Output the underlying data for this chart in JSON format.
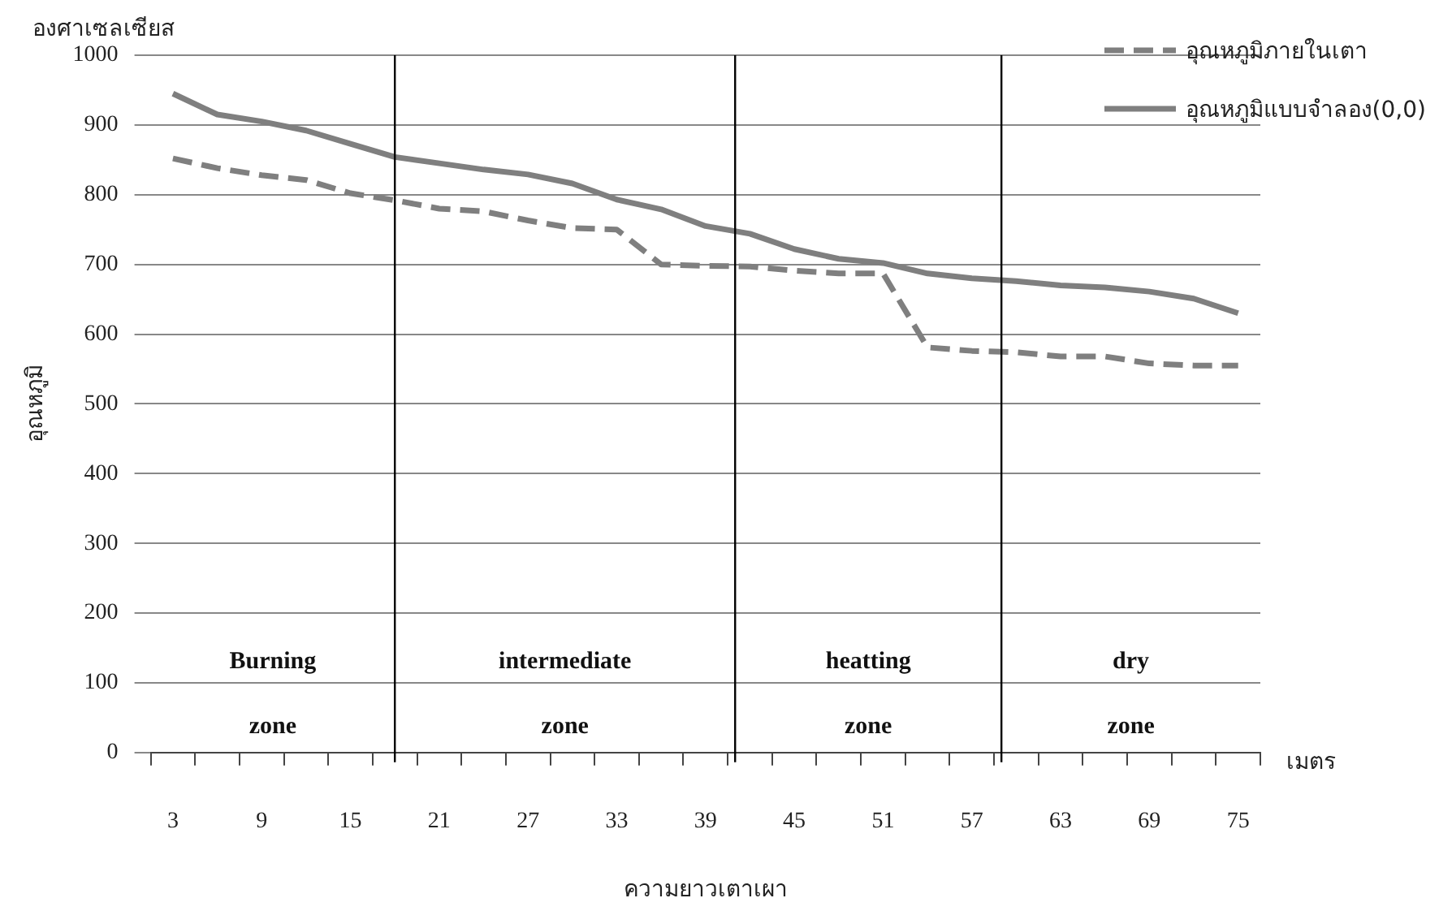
{
  "chart_data": {
    "type": "line",
    "ylabel": "อุณหภูมิ",
    "xlabel": "ความยาวเตาเผา",
    "annotations": [
      "องศาเซลเซียส",
      "เมตร",
      "Burning",
      "zone",
      "intermediate",
      "zone",
      "heatting",
      "zone",
      "dry",
      "zone"
    ],
    "x": [
      3,
      6,
      9,
      12,
      15,
      18,
      21,
      24,
      27,
      30,
      33,
      36,
      39,
      42,
      45,
      48,
      51,
      54,
      57,
      60,
      63,
      66,
      69,
      72,
      75
    ],
    "xlim": [
      1.5,
      76.5
    ],
    "xticks": [
      {
        "value": 1.5,
        "label": null
      },
      3,
      {
        "value": 4.5,
        "label": null
      },
      {
        "value": 7.5,
        "label": null
      },
      9,
      {
        "value": 10.5,
        "label": null
      },
      {
        "value": 13.5,
        "label": null
      },
      15,
      {
        "value": 16.5,
        "label": null
      },
      {
        "value": 19.5,
        "label": null
      },
      21,
      {
        "value": 22.5,
        "label": null
      },
      {
        "value": 25.5,
        "label": null
      },
      27,
      {
        "value": 28.5,
        "label": null
      },
      {
        "value": 31.5,
        "label": null
      },
      33,
      {
        "value": 34.5,
        "label": null
      },
      {
        "value": 37.5,
        "label": null
      },
      39,
      {
        "value": 40.5,
        "label": null
      },
      {
        "value": 43.5,
        "label": null
      },
      45,
      {
        "value": 46.5,
        "label": null
      },
      {
        "value": 49.5,
        "label": null
      },
      51,
      {
        "value": 52.5,
        "label": null
      },
      {
        "value": 55.5,
        "label": null
      },
      57,
      {
        "value": 58.5,
        "label": null
      },
      {
        "value": 61.5,
        "label": null
      },
      63,
      {
        "value": 64.5,
        "label": null
      },
      {
        "value": 67.5,
        "label": null
      },
      69,
      {
        "value": 70.5,
        "label": null
      },
      {
        "value": 73.5,
        "label": null
      },
      75,
      {
        "value": 76.5,
        "label": null
      }
    ],
    "ylim": [
      0,
      1000
    ],
    "yticks": [
      0,
      100,
      200,
      300,
      400,
      500,
      600,
      700,
      800,
      900,
      1000
    ],
    "series": [
      {
        "name": "อุณหภูมิภายในเตา",
        "color": "#7f7f7f",
        "line_style": "dashed",
        "values": [
          852,
          838,
          828,
          821,
          802,
          792,
          780,
          776,
          763,
          752,
          750,
          700,
          698,
          697,
          691,
          687,
          687,
          581,
          576,
          574,
          568,
          568,
          558,
          555,
          555
        ]
      },
      {
        "name": "อุณหภูมิแบบจำลอง(0,0)",
        "color": "#7f7f7f",
        "line_style": "solid",
        "values": [
          945,
          915,
          905,
          892,
          873,
          854,
          845,
          836,
          829,
          816,
          793,
          779,
          755,
          744,
          722,
          708,
          702,
          687,
          680,
          676,
          670,
          667,
          661,
          651,
          630
        ]
      }
    ],
    "ref_lines": [
      {
        "axis": "x",
        "value": 18,
        "color": "#000000"
      },
      {
        "axis": "x",
        "value": 41,
        "color": "#000000"
      },
      {
        "axis": "x",
        "value": 59,
        "color": "#000000"
      }
    ],
    "grid": "y",
    "legend": "top right",
    "marker": "none"
  }
}
